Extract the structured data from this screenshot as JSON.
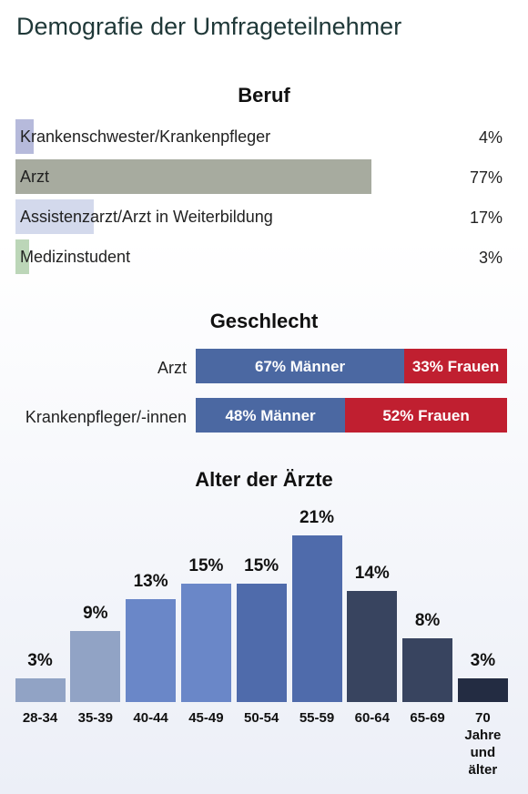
{
  "title": "Demografie der Umfrageteilnehmer",
  "chart_data": [
    {
      "type": "hbar",
      "title": "Beruf",
      "categories": [
        "Krankenschwester/Krankenpfleger",
        "Arzt",
        "Assistenzarzt/Arzt in Weiterbildung",
        "Medizinstudent"
      ],
      "values": [
        4,
        77,
        17,
        3
      ],
      "value_labels": [
        "4%",
        "77%",
        "17%",
        "3%"
      ],
      "colors": [
        "#b6badb",
        "#a7ab9f",
        "#d3d9ec",
        "#bcd6b8"
      ]
    },
    {
      "type": "stacked-hbar",
      "title": "Geschlecht",
      "categories": [
        "Arzt",
        "Krankenpfleger/-innen"
      ],
      "series": [
        {
          "color": "#4b68a2",
          "values": [
            67,
            48
          ],
          "value_labels": [
            "67% Männer",
            "48% Männer"
          ]
        },
        {
          "color": "#c01f30",
          "values": [
            33,
            52
          ],
          "value_labels": [
            "33% Frauen",
            "52% Frauen"
          ]
        }
      ]
    },
    {
      "type": "bar",
      "title": "Alter der Ärzte",
      "categories": [
        "28-34",
        "35-39",
        "40-44",
        "45-49",
        "50-54",
        "55-59",
        "60-64",
        "65-69",
        "70 Jahre und älter"
      ],
      "values": [
        3,
        9,
        13,
        15,
        15,
        21,
        14,
        8,
        3
      ],
      "value_labels": [
        "3%",
        "9%",
        "13%",
        "15%",
        "15%",
        "21%",
        "14%",
        "8%",
        "3%"
      ],
      "colors": [
        "#91a3c5",
        "#91a3c5",
        "#6a87c8",
        "#6a87c8",
        "#4f6bab",
        "#4f6bab",
        "#38445f",
        "#38445f",
        "#232c42"
      ]
    }
  ]
}
